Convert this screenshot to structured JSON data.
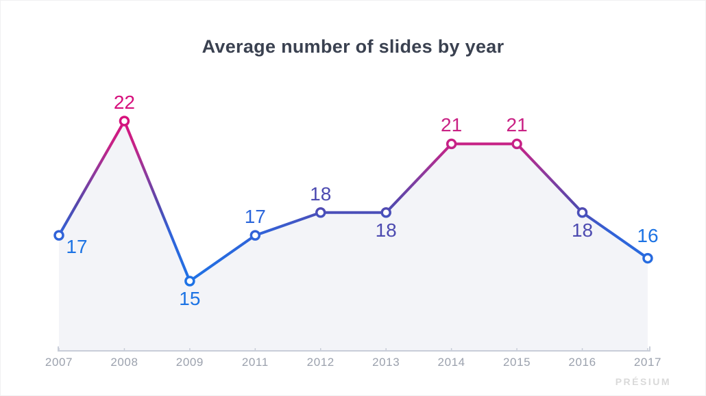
{
  "window": {
    "background": "#ffffff",
    "border_color": "#f0f0f2"
  },
  "chart_data": {
    "type": "line",
    "title": "Average number of slides by year",
    "title_color": "#3a4150",
    "categories": [
      "2007",
      "2008",
      "2009",
      "2011",
      "2012",
      "2013",
      "2014",
      "2015",
      "2016",
      "2017"
    ],
    "values": [
      17,
      22,
      15,
      17,
      18,
      18,
      21,
      21,
      18,
      16
    ],
    "series": [
      {
        "name": "Average number of slides",
        "values": [
          17,
          22,
          15,
          17,
          18,
          18,
          21,
          21,
          18,
          16
        ]
      }
    ],
    "points": [
      {
        "category": "2007",
        "value": 17,
        "label": "17",
        "label_color": "#1c73e4",
        "label_pos": "below-right"
      },
      {
        "category": "2008",
        "value": 22,
        "label": "22",
        "label_color": "#d60f7c",
        "label_pos": "above"
      },
      {
        "category": "2009",
        "value": 15,
        "label": "15",
        "label_color": "#1c73e4",
        "label_pos": "below"
      },
      {
        "category": "2011",
        "value": 17,
        "label": "17",
        "label_color": "#2b66db",
        "label_pos": "above"
      },
      {
        "category": "2012",
        "value": 18,
        "label": "18",
        "label_color": "#4c4ab0",
        "label_pos": "above"
      },
      {
        "category": "2013",
        "value": 18,
        "label": "18",
        "label_color": "#4c4ab0",
        "label_pos": "below"
      },
      {
        "category": "2014",
        "value": 21,
        "label": "21",
        "label_color": "#c92184",
        "label_pos": "above"
      },
      {
        "category": "2015",
        "value": 21,
        "label": "21",
        "label_color": "#c92184",
        "label_pos": "above"
      },
      {
        "category": "2016",
        "value": 18,
        "label": "18",
        "label_color": "#4c4ab0",
        "label_pos": "below"
      },
      {
        "category": "2017",
        "value": 16,
        "label": "16",
        "label_color": "#1c73e4",
        "label_pos": "above-far"
      }
    ],
    "xlabel": "",
    "ylabel": "",
    "ylim": [
      12,
      24
    ],
    "y_axis_visible": false,
    "grid": false,
    "legend": false,
    "style": {
      "area_fill": "#f3f4f8",
      "axis_line_color": "#c8cdd8",
      "tick_label_color": "#9ba1ad",
      "marker_fill": "#ffffff",
      "gradient_stops": [
        {
          "offset": 0.0,
          "color": "#2383f2"
        },
        {
          "offset": 0.28,
          "color": "#1d73e6"
        },
        {
          "offset": 0.5,
          "color": "#3162d8"
        },
        {
          "offset": 0.62,
          "color": "#5547ac"
        },
        {
          "offset": 0.75,
          "color": "#8d3a9d"
        },
        {
          "offset": 0.87,
          "color": "#c52387"
        },
        {
          "offset": 1.0,
          "color": "#d90e7b"
        }
      ]
    }
  },
  "watermark": {
    "text": "PRÉSIUM",
    "color": "#d9d9d9"
  }
}
